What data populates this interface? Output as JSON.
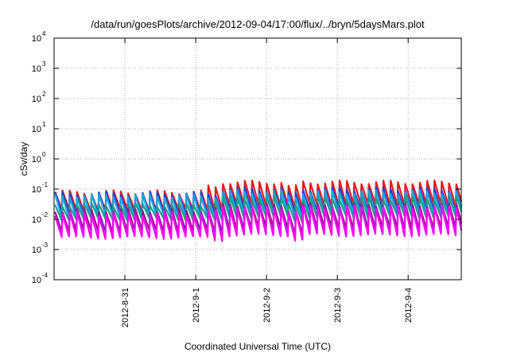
{
  "chart_data": {
    "type": "line",
    "title": "/data/run/goesPlots/archive/2012-09-04/17:00/flux/../bryn/5daysMars.plot",
    "xlabel": "Coordinated Universal Time (UTC)",
    "ylabel": "cSv/day",
    "yscale": "log",
    "ylim": [
      0.0001,
      10000
    ],
    "xlim_days": [
      0.0,
      5.75
    ],
    "x_units": "days from 2012-08-30 00:00 UTC",
    "grid": true,
    "y_ticks": [
      {
        "base": "10",
        "exp": "-4",
        "value": 0.0001
      },
      {
        "base": "10",
        "exp": "-3",
        "value": 0.001
      },
      {
        "base": "10",
        "exp": "-2",
        "value": 0.01
      },
      {
        "base": "10",
        "exp": "-1",
        "value": 0.1
      },
      {
        "base": "10",
        "exp": "0",
        "value": 1
      },
      {
        "base": "10",
        "exp": "1",
        "value": 10
      },
      {
        "base": "10",
        "exp": "2",
        "value": 100
      },
      {
        "base": "10",
        "exp": "3",
        "value": 1000
      },
      {
        "base": "10",
        "exp": "4",
        "value": 10000
      }
    ],
    "x_ticks": [
      {
        "label": "2012-8-31",
        "day": 1.0
      },
      {
        "label": "2012-9-1",
        "day": 2.0
      },
      {
        "label": "2012-9-2",
        "day": 3.0
      },
      {
        "label": "2012-9-3",
        "day": 4.0
      },
      {
        "label": "2012-9-4",
        "day": 5.0
      }
    ],
    "cycle_period_days": 0.103,
    "regime_change_day": 2.15,
    "recovery_day": 3.4,
    "series": [
      {
        "name": "red",
        "color": "#e41a1c",
        "peak_early": 0.08,
        "peak_late": 0.17,
        "trough_early": 0.02,
        "trough_late": 0.03
      },
      {
        "name": "blue",
        "color": "#1f3fd6",
        "peak_early": 0.07,
        "peak_late": 0.1,
        "trough_early": 0.015,
        "trough_late": 0.02
      },
      {
        "name": "cyan",
        "color": "#1aa6e0",
        "peak_early": 0.06,
        "peak_late": 0.08,
        "trough_early": 0.012,
        "trough_late": 0.015
      },
      {
        "name": "teal",
        "color": "#1f9e8a",
        "peak_early": 0.03,
        "peak_late": 0.05,
        "trough_early": 0.01,
        "trough_late": 0.012
      },
      {
        "name": "purple",
        "color": "#8b1a8b",
        "peak_early": 0.02,
        "peak_late": 0.03,
        "trough_early": 0.004,
        "trough_late": 0.005
      },
      {
        "name": "magenta",
        "color": "#ff00ff",
        "peak_early": 0.015,
        "peak_late": 0.025,
        "trough_early": 0.0025,
        "trough_late": 0.003
      }
    ]
  }
}
